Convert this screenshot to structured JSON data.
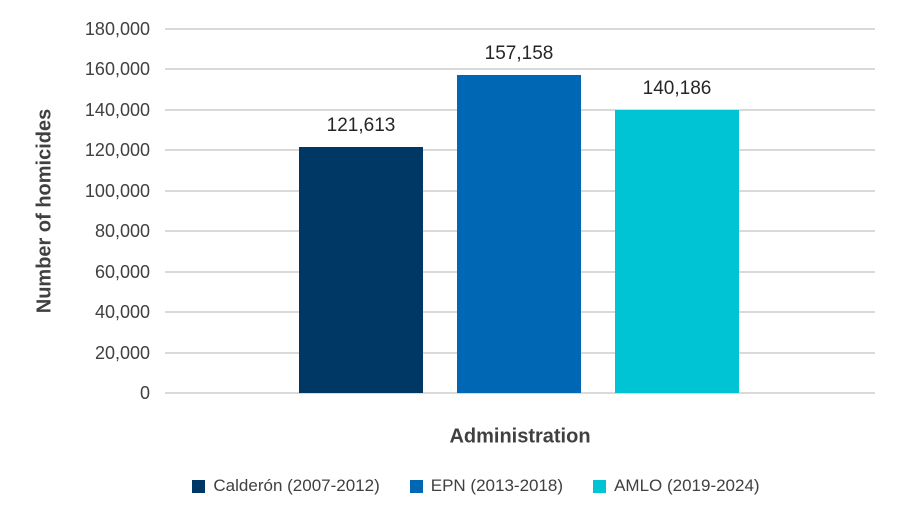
{
  "chart_data": {
    "type": "bar",
    "title": "",
    "xlabel": "Administration",
    "ylabel": "Number of homicides",
    "categories": [
      "Calderón (2007-2012)",
      "EPN (2013-2018)",
      "AMLO (2019-2024)"
    ],
    "values": [
      121613,
      157158,
      140186
    ],
    "data_labels": [
      "121,613",
      "157,158",
      "140,186"
    ],
    "bar_colors": [
      "#003865",
      "#0067b5",
      "#00c4d4"
    ],
    "ylim": [
      0,
      180000
    ],
    "ytick_step": 20000,
    "ytick_labels": [
      "0",
      "20,000",
      "40,000",
      "60,000",
      "80,000",
      "100,000",
      "120,000",
      "140,000",
      "160,000",
      "180,000"
    ],
    "grid": true,
    "legend_position": "bottom",
    "legend": [
      {
        "label": "Calderón (2007-2012)",
        "color": "#003865"
      },
      {
        "label": "EPN (2013-2018)",
        "color": "#0067b5"
      },
      {
        "label": "AMLO (2019-2024)",
        "color": "#00c4d4"
      }
    ],
    "colors": {
      "grid": "#d9d9d9",
      "axis_text": "#404040",
      "data_label_text": "#262626",
      "background": "#ffffff"
    }
  }
}
